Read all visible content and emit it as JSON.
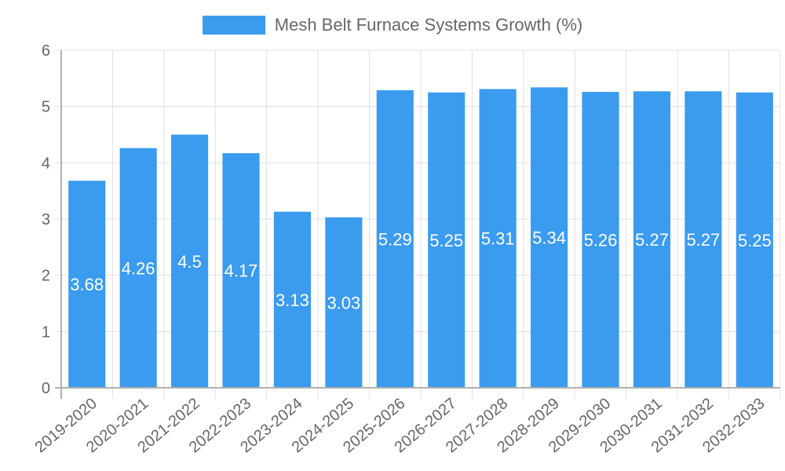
{
  "legend": {
    "label": "Mesh Belt Furnace Systems Growth (%)",
    "color": "#3a9bef"
  },
  "chart_data": {
    "type": "bar",
    "title": "",
    "xlabel": "",
    "ylabel": "",
    "ylim": [
      0,
      6
    ],
    "yticks": [
      0,
      1,
      2,
      3,
      4,
      5,
      6
    ],
    "grid": true,
    "legend_position": "top",
    "categories": [
      "2019-2020",
      "2020-2021",
      "2021-2022",
      "2022-2023",
      "2023-2024",
      "2024-2025",
      "2025-2026",
      "2026-2027",
      "2027-2028",
      "2028-2029",
      "2029-2030",
      "2030-2031",
      "2031-2032",
      "2032-2033"
    ],
    "series": [
      {
        "name": "Mesh Belt Furnace Systems Growth (%)",
        "color": "#3a9bef",
        "values": [
          3.68,
          4.26,
          4.5,
          4.17,
          3.13,
          3.03,
          5.29,
          5.25,
          5.31,
          5.34,
          5.26,
          5.27,
          5.27,
          5.25
        ]
      }
    ]
  }
}
